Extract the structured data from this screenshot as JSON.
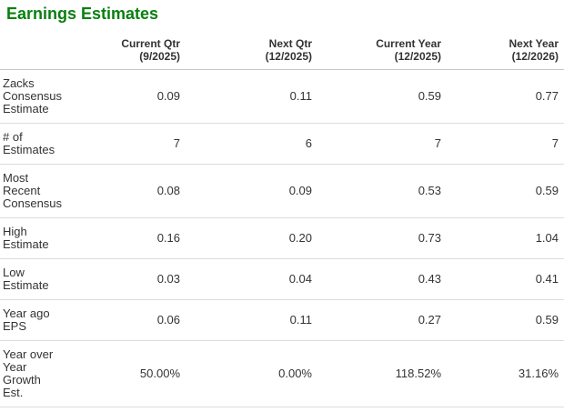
{
  "title": {
    "text": "Earnings Estimates",
    "accent_color": "#088010"
  },
  "table": {
    "columns": [
      {
        "label": "Current Qtr",
        "period": "(9/2025)"
      },
      {
        "label": "Next Qtr",
        "period": "(12/2025)"
      },
      {
        "label": "Current Year",
        "period": "(12/2025)"
      },
      {
        "label": "Next Year",
        "period": "(12/2026)"
      }
    ],
    "rows": [
      {
        "label": "Zacks Consensus Estimate",
        "values": [
          "0.09",
          "0.11",
          "0.59",
          "0.77"
        ]
      },
      {
        "label": "# of Estimates",
        "values": [
          "7",
          "6",
          "7",
          "7"
        ]
      },
      {
        "label": "Most Recent Consensus",
        "values": [
          "0.08",
          "0.09",
          "0.53",
          "0.59"
        ]
      },
      {
        "label": "High Estimate",
        "values": [
          "0.16",
          "0.20",
          "0.73",
          "1.04"
        ]
      },
      {
        "label": "Low Estimate",
        "values": [
          "0.03",
          "0.04",
          "0.43",
          "0.41"
        ]
      },
      {
        "label": "Year ago EPS",
        "values": [
          "0.06",
          "0.11",
          "0.27",
          "0.59"
        ]
      },
      {
        "label": "Year over Year Growth Est.",
        "values": [
          "50.00%",
          "0.00%",
          "118.52%",
          "31.16%"
        ]
      }
    ],
    "colors": {
      "header_rule": "#c6c6c6",
      "row_rule": "#dcdcdc",
      "text": "#333333"
    }
  }
}
